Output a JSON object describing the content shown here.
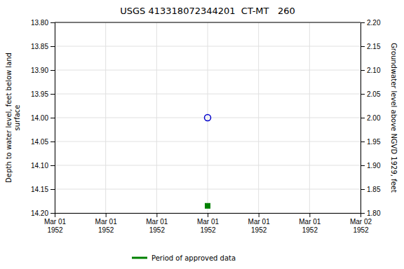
{
  "chart_data": {
    "type": "scatter",
    "title": "USGS 413318072344201  CT-MT   260",
    "y_label": "Depth to water level, feet below land\nsurface",
    "y2_label": "Groundwater level above NGVD 1929, feet",
    "categories": [
      "Mar 01\n1952",
      "Mar 01\n1952",
      "Mar 01\n1952",
      "Mar 01\n1952",
      "Mar 01\n1952",
      "Mar 01\n1952",
      "Mar 02\n1952"
    ],
    "series": [
      {
        "color": "#0000cc",
        "marker": "circle",
        "values": [
          null,
          null,
          null,
          14.0,
          null,
          null,
          null
        ]
      },
      {
        "name": "Period of approved data",
        "color": "#008000",
        "marker": "square",
        "values": [
          null,
          null,
          null,
          14.185,
          null,
          null,
          null
        ]
      }
    ],
    "ylim": [
      14.2,
      13.8
    ],
    "yticks": [
      {
        "value": 13.8,
        "label": "13.80"
      },
      {
        "value": 13.85,
        "label": "13.85"
      },
      {
        "value": 13.9,
        "label": "13.90"
      },
      {
        "value": 13.95,
        "label": "13.95"
      },
      {
        "value": 14.0,
        "label": "14.00"
      },
      {
        "value": 14.05,
        "label": "14.05"
      },
      {
        "value": 14.1,
        "label": "14.10"
      },
      {
        "value": 14.15,
        "label": "14.15"
      },
      {
        "value": 14.2,
        "label": "14.20"
      }
    ],
    "y2lim": [
      1.8,
      2.2
    ],
    "y2ticks": [
      {
        "value": 2.2,
        "label": "2.20"
      },
      {
        "value": 2.15,
        "label": "2.15"
      },
      {
        "value": 2.1,
        "label": "2.10"
      },
      {
        "value": 2.05,
        "label": "2.05"
      },
      {
        "value": 2.0,
        "label": "2.00"
      },
      {
        "value": 1.95,
        "label": "1.95"
      },
      {
        "value": 1.9,
        "label": "1.90"
      },
      {
        "value": 1.85,
        "label": "1.85"
      },
      {
        "value": 1.8,
        "label": "1.80"
      }
    ],
    "grid": true,
    "legend": "bottom"
  }
}
